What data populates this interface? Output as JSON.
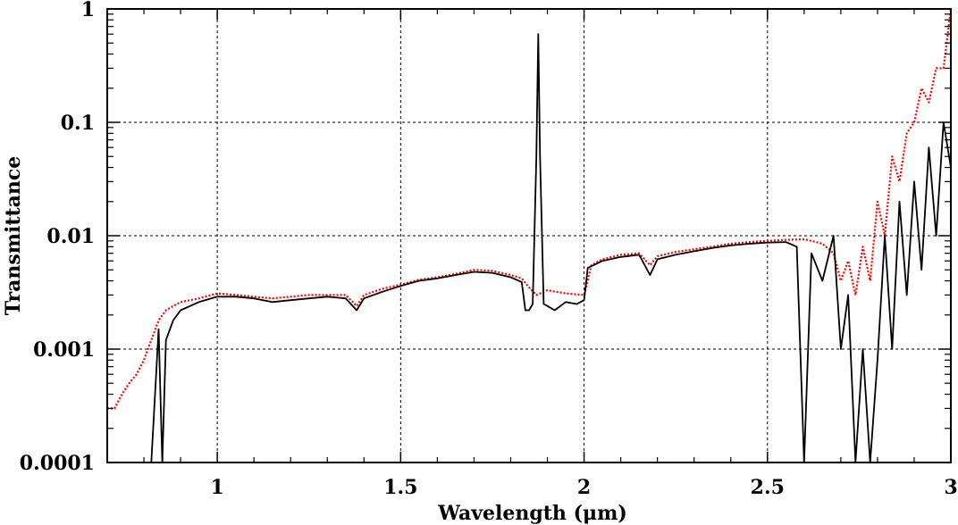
{
  "chart_data": {
    "type": "line",
    "title": "",
    "xlabel": "Wavelength (μm)",
    "ylabel": "Transmittance",
    "xlim": [
      0.7,
      3.0
    ],
    "ylim": [
      0.0001,
      1
    ],
    "yscale": "log",
    "grid": true,
    "legend": "none",
    "x_ticks": [
      1,
      1.5,
      2,
      2.5,
      3
    ],
    "x_tick_labels": [
      "1",
      "1.5",
      "2",
      "2.5",
      "3"
    ],
    "y_ticks": [
      0.0001,
      0.001,
      0.01,
      0.1,
      1
    ],
    "y_tick_labels": [
      "0.0001",
      "0.001",
      "0.01",
      "0.1",
      "1"
    ],
    "series": [
      {
        "color": "#ff0000",
        "style": "dotted",
        "x": [
          0.7,
          0.72,
          0.74,
          0.76,
          0.78,
          0.8,
          0.82,
          0.84,
          0.86,
          0.88,
          0.9,
          0.95,
          1.0,
          1.05,
          1.1,
          1.15,
          1.2,
          1.25,
          1.3,
          1.35,
          1.38,
          1.4,
          1.45,
          1.5,
          1.55,
          1.6,
          1.65,
          1.7,
          1.75,
          1.8,
          1.83,
          1.85,
          1.87,
          1.9,
          1.95,
          2.0,
          2.02,
          2.05,
          2.1,
          2.15,
          2.18,
          2.2,
          2.25,
          2.3,
          2.35,
          2.4,
          2.45,
          2.5,
          2.55,
          2.6,
          2.62,
          2.65,
          2.68,
          2.7,
          2.72,
          2.74,
          2.76,
          2.78,
          2.8,
          2.82,
          2.84,
          2.86,
          2.88,
          2.9,
          2.92,
          2.94,
          2.96,
          2.98,
          3.0
        ],
        "y": [
          0.0003,
          0.0003,
          0.0004,
          0.0005,
          0.0006,
          0.0008,
          0.0012,
          0.0018,
          0.0022,
          0.0024,
          0.0026,
          0.0028,
          0.0031,
          0.003,
          0.0029,
          0.0028,
          0.0029,
          0.003,
          0.003,
          0.003,
          0.0024,
          0.003,
          0.0034,
          0.0037,
          0.0041,
          0.0043,
          0.0046,
          0.005,
          0.0049,
          0.0045,
          0.0042,
          0.0035,
          0.003,
          0.0033,
          0.0031,
          0.003,
          0.0055,
          0.0062,
          0.0068,
          0.007,
          0.0055,
          0.0066,
          0.0072,
          0.0076,
          0.008,
          0.0085,
          0.0088,
          0.009,
          0.0092,
          0.0093,
          0.009,
          0.0085,
          0.007,
          0.004,
          0.006,
          0.003,
          0.008,
          0.004,
          0.02,
          0.01,
          0.05,
          0.03,
          0.08,
          0.1,
          0.2,
          0.15,
          0.3,
          0.3,
          1.0
        ]
      },
      {
        "color": "#000000",
        "style": "solid",
        "x": [
          0.7,
          0.72,
          0.74,
          0.76,
          0.78,
          0.8,
          0.82,
          0.84,
          0.85,
          0.86,
          0.88,
          0.9,
          0.95,
          1.0,
          1.05,
          1.1,
          1.15,
          1.2,
          1.25,
          1.3,
          1.35,
          1.38,
          1.4,
          1.45,
          1.5,
          1.55,
          1.6,
          1.65,
          1.7,
          1.75,
          1.8,
          1.83,
          1.84,
          1.85,
          1.86,
          1.87,
          1.875,
          1.88,
          1.89,
          1.9,
          1.92,
          1.95,
          1.98,
          2.0,
          2.01,
          2.05,
          2.1,
          2.15,
          2.18,
          2.2,
          2.25,
          2.3,
          2.35,
          2.4,
          2.45,
          2.5,
          2.55,
          2.58,
          2.6,
          2.62,
          2.65,
          2.68,
          2.7,
          2.72,
          2.74,
          2.76,
          2.78,
          2.8,
          2.82,
          2.84,
          2.86,
          2.88,
          2.9,
          2.92,
          2.94,
          2.96,
          2.98,
          3.0
        ],
        "y": [
          0.0001,
          0.0001,
          0.0001,
          0.0001,
          0.0001,
          0.0001,
          0.0001,
          0.0015,
          0.0001,
          0.0012,
          0.0018,
          0.0022,
          0.0026,
          0.0029,
          0.0029,
          0.0028,
          0.0026,
          0.0027,
          0.0028,
          0.0029,
          0.0028,
          0.0022,
          0.0028,
          0.0032,
          0.0036,
          0.004,
          0.0042,
          0.0045,
          0.0048,
          0.0047,
          0.0043,
          0.0039,
          0.0022,
          0.0022,
          0.0025,
          0.05,
          0.6,
          0.05,
          0.0025,
          0.0024,
          0.0022,
          0.0026,
          0.0025,
          0.0027,
          0.0052,
          0.006,
          0.0065,
          0.0068,
          0.0045,
          0.0062,
          0.0068,
          0.0073,
          0.0078,
          0.0082,
          0.0085,
          0.0087,
          0.0088,
          0.008,
          0.0001,
          0.007,
          0.004,
          0.01,
          0.001,
          0.003,
          0.0001,
          0.001,
          0.0001,
          0.0008,
          0.01,
          0.001,
          0.02,
          0.003,
          0.03,
          0.005,
          0.06,
          0.01,
          0.1,
          0.04
        ]
      }
    ]
  }
}
